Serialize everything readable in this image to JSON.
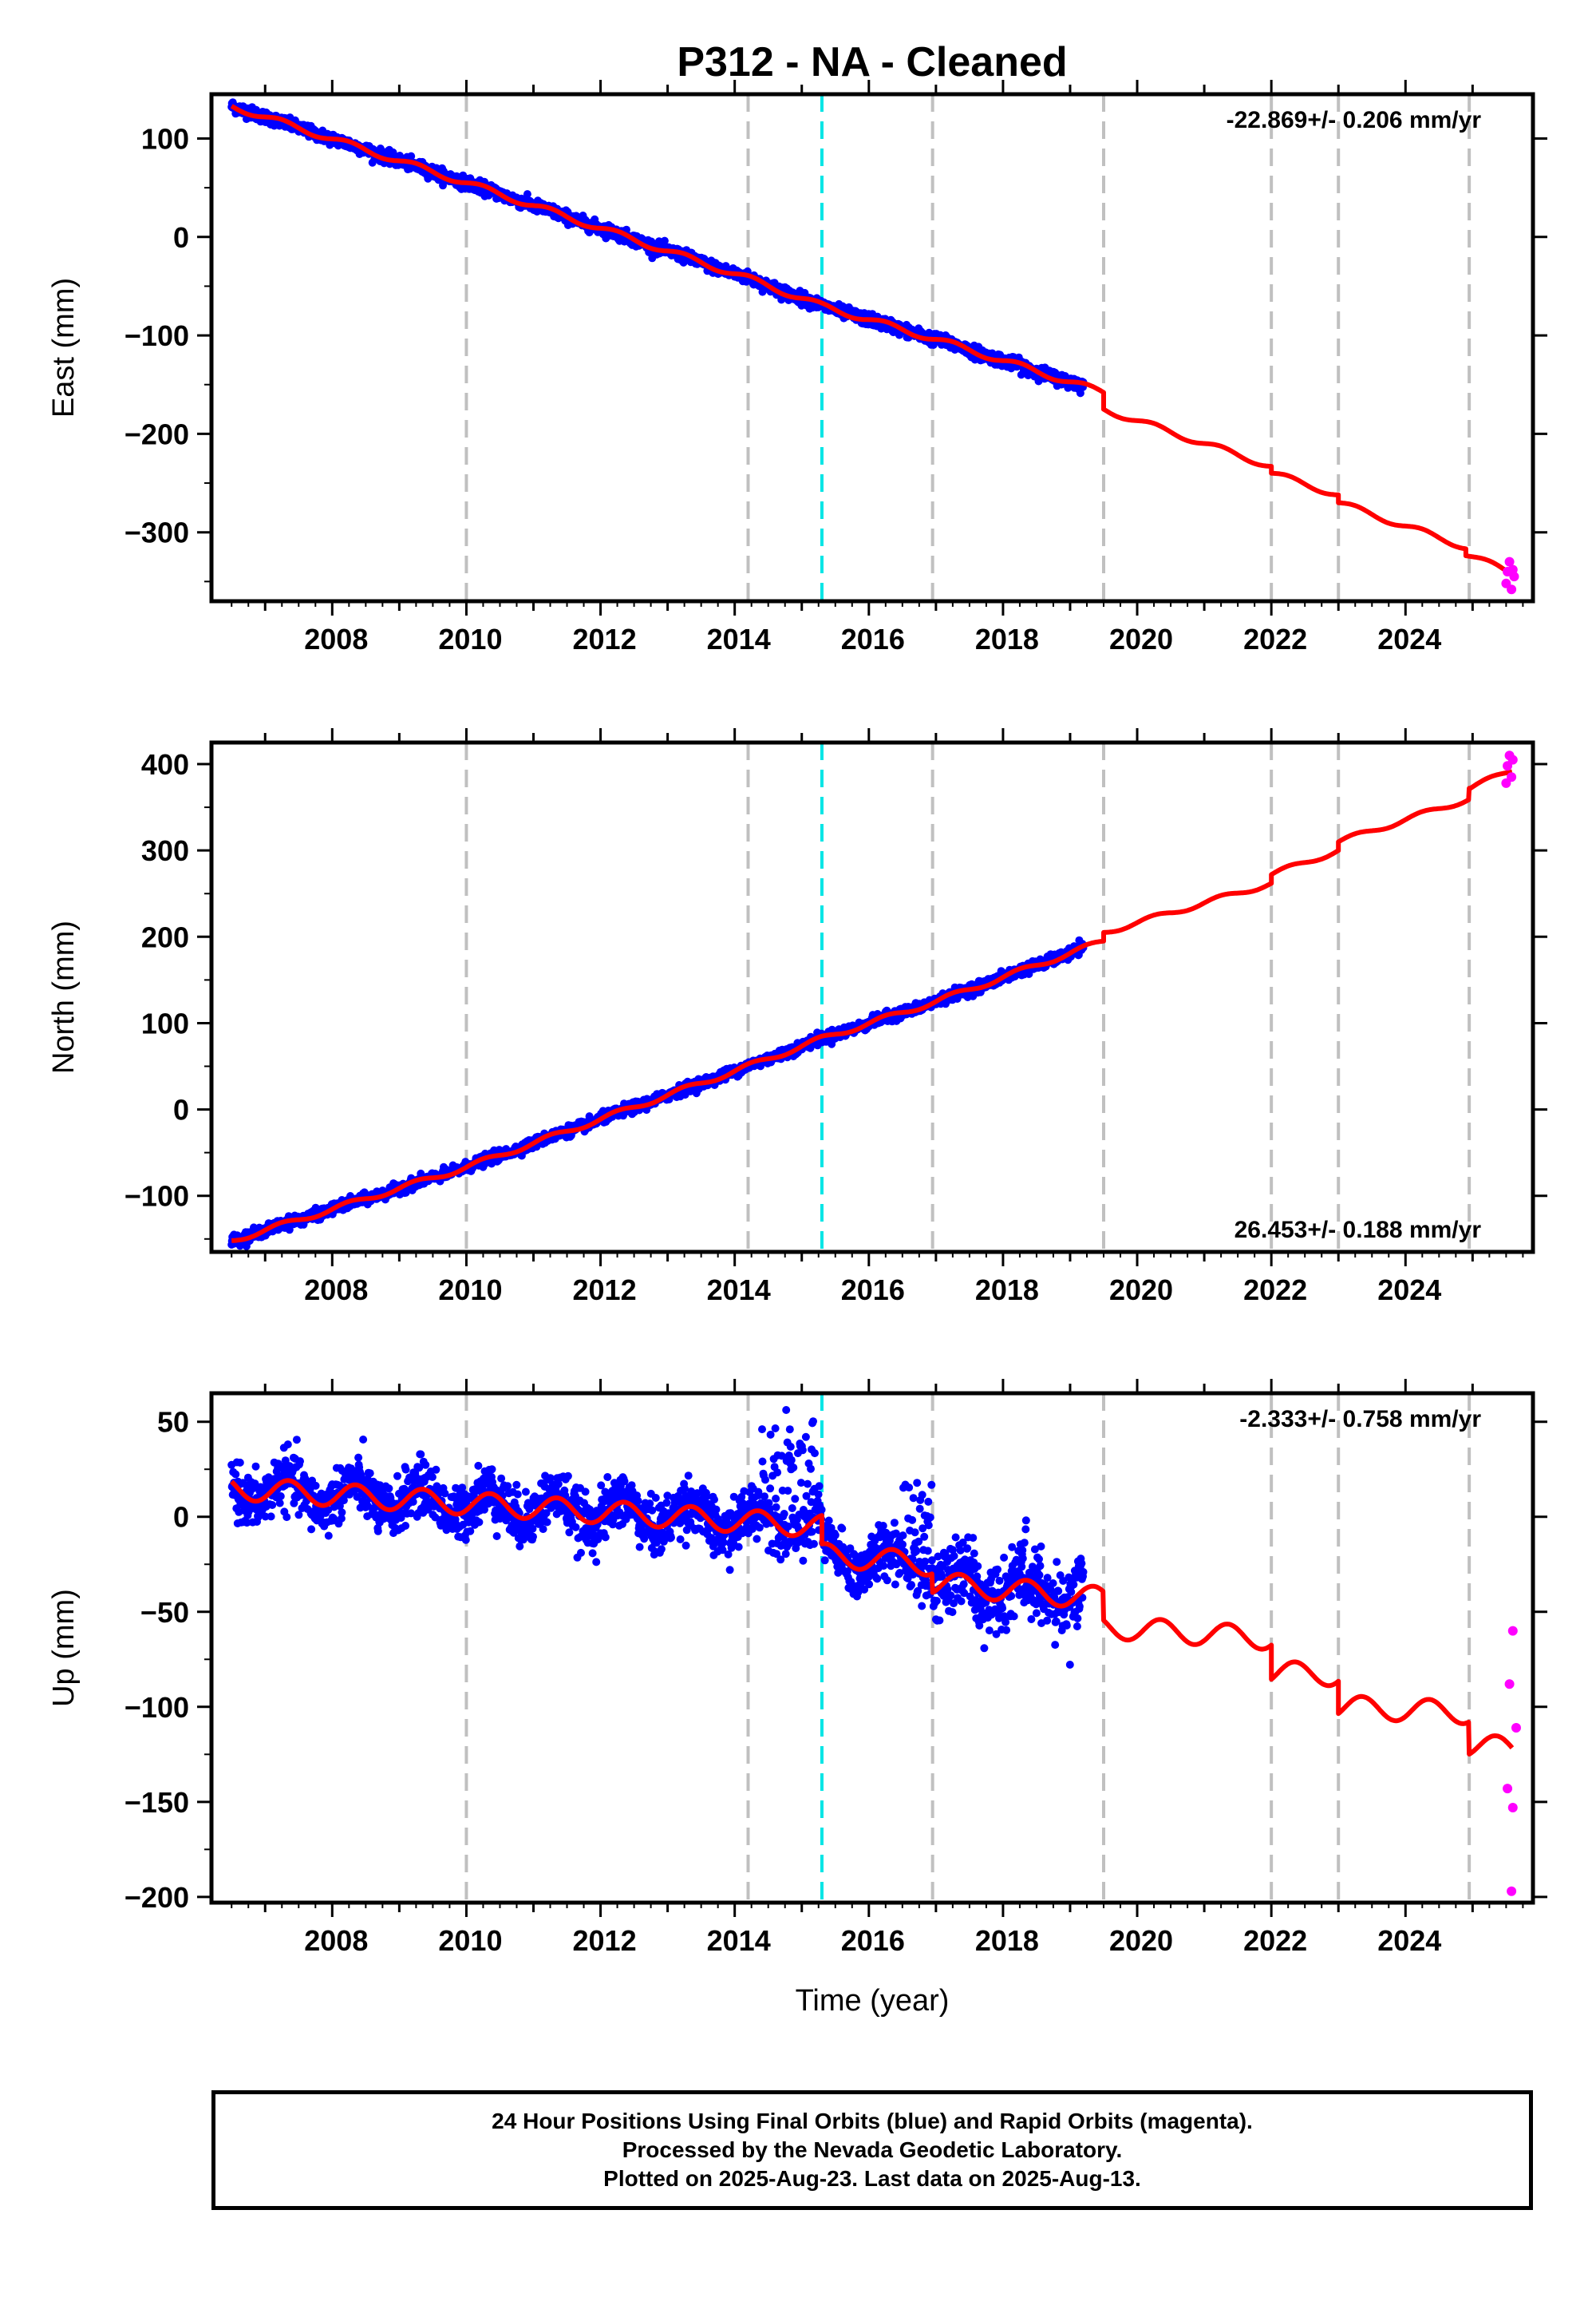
{
  "figure": {
    "title": "P312  - NA - Cleaned",
    "time_label": "Time (year)"
  },
  "colors": {
    "final_orbits": "#0000ff",
    "rapid_orbits": "#ff00ff",
    "model": "#ff0000",
    "reference_line": "#00e5e5",
    "event_lines": "#c0c0c0"
  },
  "chart_data": [
    {
      "type": "scatter",
      "component": "East",
      "ylabel": "East (mm)",
      "rate_text": "-22.869+/- 0.206 mm/yr",
      "rate_position": "top-right",
      "xlim": [
        2006.2,
        2025.9
      ],
      "ylim": [
        -370,
        145
      ],
      "yticks": [
        100,
        0,
        -100,
        -200,
        -300
      ],
      "xticks": [
        2008,
        2010,
        2012,
        2014,
        2016,
        2018,
        2020,
        2022,
        2024
      ],
      "series": [
        {
          "name": "Final Orbits",
          "kind": "points",
          "rate": -22.869,
          "start": [
            2006.5,
            133
          ],
          "end_year": 2019.2,
          "noise": 3,
          "seasonal": 1.5
        },
        {
          "name": "Rapid Orbits",
          "kind": "points",
          "points": [
            [
              2025.55,
              -330
            ],
            [
              2025.6,
              -338
            ],
            [
              2025.62,
              -345
            ],
            [
              2025.5,
              -352
            ],
            [
              2025.58,
              -358
            ],
            [
              2025.52,
              -340
            ]
          ]
        },
        {
          "name": "Model",
          "kind": "line",
          "points": [
            [
              2006.5,
              133
            ],
            [
              2010.0,
              55
            ],
            [
              2014.2,
              -42
            ],
            [
              2015.3,
              -70
            ],
            [
              2017.0,
              -104
            ],
            [
              2019.5,
              -158
            ],
            [
              2019.5,
              -175
            ],
            [
              2022.0,
              -233
            ],
            [
              2022.0,
              -240
            ],
            [
              2023.0,
              -262
            ],
            [
              2023.0,
              -270
            ],
            [
              2024.9,
              -315
            ],
            [
              2024.9,
              -322
            ],
            [
              2025.6,
              -342
            ]
          ]
        }
      ],
      "event_lines": [
        2010.0,
        2014.2,
        2016.95,
        2019.5,
        2022.0,
        2023.0,
        2024.95
      ],
      "reference_line": 2015.3
    },
    {
      "type": "scatter",
      "component": "North",
      "ylabel": "North (mm)",
      "rate_text": "26.453+/- 0.188 mm/yr",
      "rate_position": "bottom-right",
      "xlim": [
        2006.2,
        2025.9
      ],
      "ylim": [
        -165,
        425
      ],
      "yticks": [
        400,
        300,
        200,
        100,
        0,
        -100
      ],
      "xticks": [
        2008,
        2010,
        2012,
        2014,
        2016,
        2018,
        2020,
        2022,
        2024
      ],
      "series": [
        {
          "name": "Final Orbits",
          "kind": "points",
          "rate": 26.453,
          "start": [
            2006.5,
            -152
          ],
          "end_year": 2019.2,
          "noise": 3,
          "seasonal": 2
        },
        {
          "name": "Rapid Orbits",
          "kind": "points",
          "points": [
            [
              2025.55,
              410
            ],
            [
              2025.6,
              405
            ],
            [
              2025.52,
              398
            ],
            [
              2025.58,
              385
            ],
            [
              2025.5,
              378
            ]
          ]
        },
        {
          "name": "Model",
          "kind": "line",
          "points": [
            [
              2006.5,
              -152
            ],
            [
              2010.0,
              -67
            ],
            [
              2014.2,
              50
            ],
            [
              2015.3,
              82
            ],
            [
              2017.0,
              125
            ],
            [
              2019.5,
              195
            ],
            [
              2019.5,
              205
            ],
            [
              2022.0,
              262
            ],
            [
              2022.0,
              272
            ],
            [
              2023.0,
              300
            ],
            [
              2023.0,
              310
            ],
            [
              2024.95,
              360
            ],
            [
              2024.95,
              372
            ],
            [
              2025.6,
              393
            ]
          ]
        }
      ],
      "event_lines": [
        2010.0,
        2014.2,
        2016.95,
        2019.5,
        2022.0,
        2023.0,
        2024.95
      ],
      "reference_line": 2015.3
    },
    {
      "type": "scatter",
      "component": "Up",
      "ylabel": "Up (mm)",
      "xlabel": "Time (year)",
      "rate_text": "-2.333+/- 0.758 mm/yr",
      "rate_position": "top-right",
      "xlim": [
        2006.2,
        2025.9
      ],
      "ylim": [
        -203,
        65
      ],
      "yticks": [
        50,
        0,
        -50,
        -100,
        -150,
        -200
      ],
      "xticks": [
        2008,
        2010,
        2012,
        2014,
        2016,
        2018,
        2020,
        2022,
        2024
      ],
      "series": [
        {
          "name": "Final Orbits",
          "kind": "points",
          "rate": -2.333,
          "start": [
            2006.5,
            12
          ],
          "end_year": 2019.2,
          "noise": 7,
          "seasonal": 6
        },
        {
          "name": "Rapid Orbits",
          "kind": "points",
          "points": [
            [
              2025.6,
              -60
            ],
            [
              2025.55,
              -88
            ],
            [
              2025.65,
              -111
            ],
            [
              2025.52,
              -143
            ],
            [
              2025.6,
              -153
            ],
            [
              2025.58,
              -197
            ]
          ]
        },
        {
          "name": "Model",
          "kind": "line",
          "seasonal_amplitude": 6,
          "points": [
            [
              2006.5,
              15
            ],
            [
              2015.3,
              -5
            ],
            [
              2015.3,
              -20
            ],
            [
              2016.95,
              -25
            ],
            [
              2016.95,
              -35
            ],
            [
              2019.5,
              -43
            ],
            [
              2019.5,
              -58
            ],
            [
              2022.0,
              -64
            ],
            [
              2022.0,
              -82
            ],
            [
              2023.0,
              -83
            ],
            [
              2023.0,
              -100
            ],
            [
              2024.95,
              -103
            ],
            [
              2024.95,
              -120
            ],
            [
              2025.6,
              -122
            ]
          ]
        }
      ],
      "event_lines": [
        2010.0,
        2014.2,
        2016.95,
        2019.5,
        2022.0,
        2023.0,
        2024.95
      ],
      "reference_line": 2015.3
    }
  ],
  "footer": {
    "line1": "24 Hour Positions Using Final Orbits (blue) and Rapid Orbits (magenta).",
    "line2": "Processed by the Nevada Geodetic Laboratory.",
    "line3": "Plotted on 2025-Aug-23. Last data on 2025-Aug-13."
  }
}
